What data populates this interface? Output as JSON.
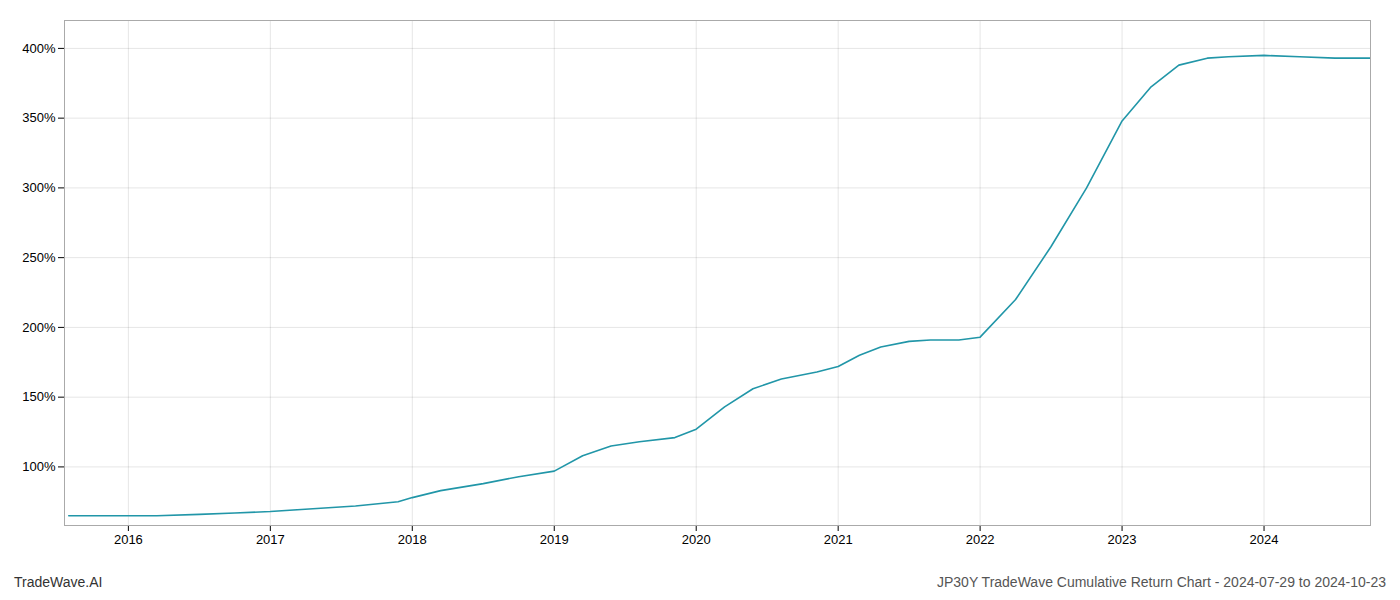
{
  "chart_data": {
    "type": "line",
    "title": "JP30Y TradeWave Cumulative Return Chart - 2024-07-29 to 2024-10-23",
    "annotations": [
      "TradeWave.AI"
    ],
    "x": [
      2015.58,
      2015.7,
      2015.85,
      2016.0,
      2016.2,
      2016.5,
      2016.75,
      2017.0,
      2017.3,
      2017.6,
      2017.9,
      2018.0,
      2018.2,
      2018.5,
      2018.75,
      2019.0,
      2019.2,
      2019.4,
      2019.6,
      2019.85,
      2020.0,
      2020.2,
      2020.4,
      2020.6,
      2020.85,
      2021.0,
      2021.15,
      2021.3,
      2021.5,
      2021.65,
      2021.85,
      2022.0,
      2022.25,
      2022.5,
      2022.75,
      2023.0,
      2023.2,
      2023.4,
      2023.6,
      2023.75,
      2024.0,
      2024.25,
      2024.5,
      2024.75
    ],
    "values": [
      65,
      65,
      65,
      65,
      65,
      66,
      67,
      68,
      70,
      72,
      75,
      78,
      83,
      88,
      93,
      97,
      108,
      115,
      118,
      121,
      127,
      143,
      156,
      163,
      168,
      172,
      180,
      186,
      190,
      191,
      191,
      193,
      220,
      258,
      300,
      348,
      372,
      388,
      393,
      394,
      395,
      394,
      393,
      393
    ],
    "color": "#2196a8",
    "xlim": [
      2015.55,
      2024.75
    ],
    "ylim": [
      58,
      420
    ],
    "xticks": [
      2016,
      2017,
      2018,
      2019,
      2020,
      2021,
      2022,
      2023,
      2024
    ],
    "yticks": [
      {
        "value": 100,
        "label": "100%"
      },
      {
        "value": 150,
        "label": "150%"
      },
      {
        "value": 200,
        "label": "200%"
      },
      {
        "value": 250,
        "label": "250%"
      },
      {
        "value": 300,
        "label": "300%"
      },
      {
        "value": 350,
        "label": "350%"
      },
      {
        "value": 400,
        "label": "400%"
      }
    ],
    "grid": true
  }
}
